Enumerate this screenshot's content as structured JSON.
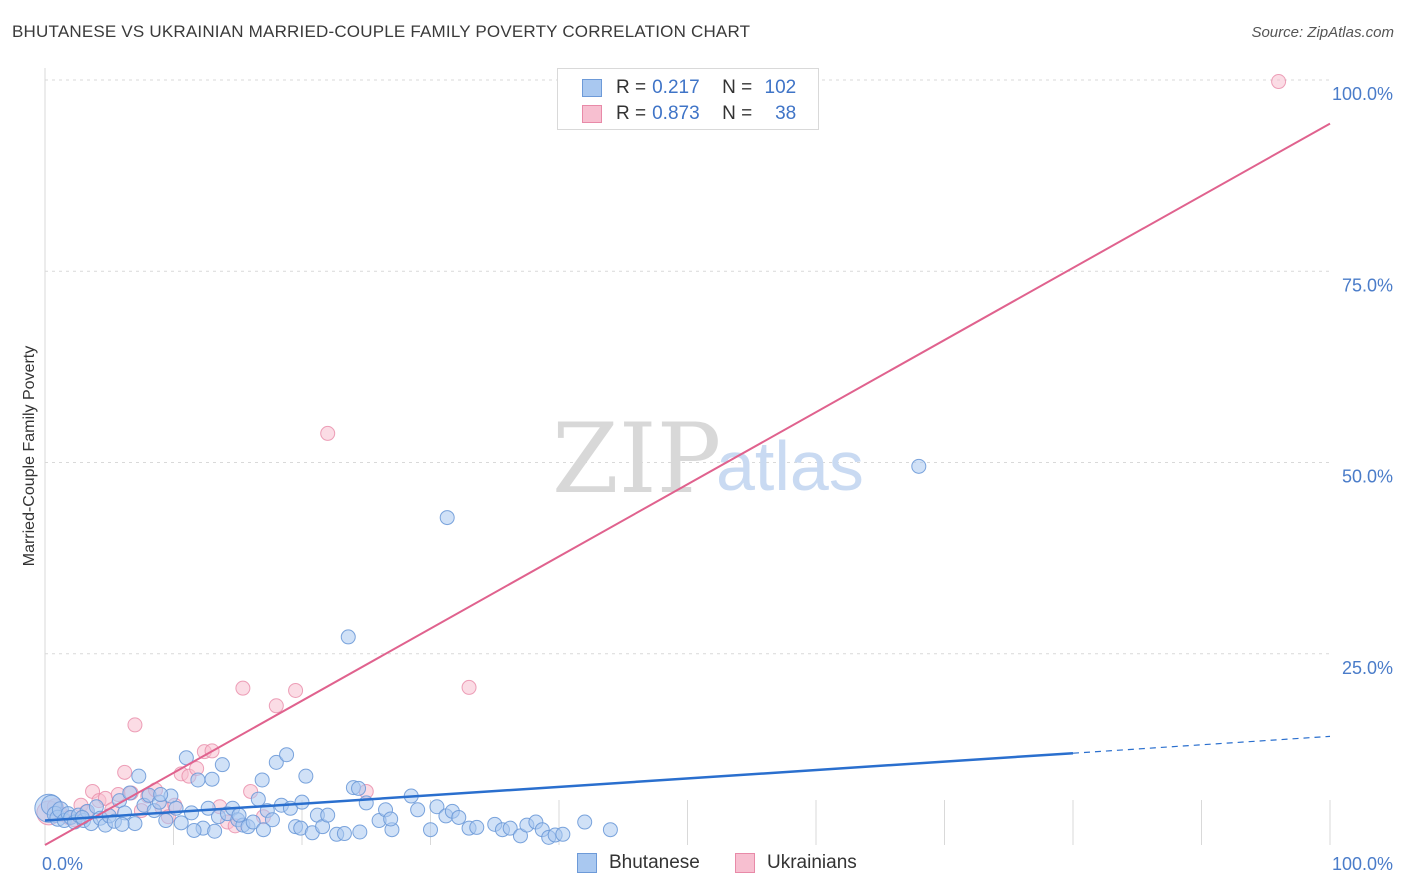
{
  "title": "BHUTANESE VS UKRAINIAN MARRIED-COUPLE FAMILY POVERTY CORRELATION CHART",
  "source": "Source: ZipAtlas.com",
  "watermark": {
    "zip": "ZIP",
    "atlas": "atlas"
  },
  "colors": {
    "bhutanese_fill": "#a9c8f0",
    "bhutanese_stroke": "#6d9ad8",
    "bhutanese_line": "#2a6fce",
    "ukrainians_fill": "#f7bfd0",
    "ukrainians_stroke": "#e88aa8",
    "ukrainians_line": "#e0628e",
    "axis_label": "#4a7cc9",
    "grid": "#d9d9d9"
  },
  "legend": {
    "rows": [
      {
        "r_label": "R =",
        "r_value": "0.217",
        "n_label": "N =",
        "n_value": "102"
      },
      {
        "r_label": "R =",
        "r_value": "0.873",
        "n_label": "N =",
        "n_value": "38"
      }
    ]
  },
  "bottom_legend": {
    "bhutanese": "Bhutanese",
    "ukrainians": "Ukrainians"
  },
  "chart_data": {
    "type": "scatter",
    "title": "BHUTANESE VS UKRAINIAN MARRIED-COUPLE FAMILY POVERTY CORRELATION CHART",
    "xlabel": "",
    "ylabel": "Married-Couple Family Poverty",
    "xlim": [
      0,
      100
    ],
    "ylim": [
      0,
      100
    ],
    "x_tick_labels": [
      "0.0%",
      "100.0%"
    ],
    "y_ticks": [
      25,
      50,
      75,
      100
    ],
    "y_tick_labels": [
      "25.0%",
      "50.0%",
      "75.0%",
      "100.0%"
    ],
    "grid": true,
    "series": [
      {
        "name": "Bhutanese",
        "r": 0.217,
        "n": 102,
        "trend": {
          "x0": 0,
          "y0": 3.2,
          "x1": 80,
          "y1": 12.0,
          "dashed_to_x": 100,
          "dashed_to_y": 14.2
        },
        "points": [
          [
            0.3,
            4.8,
            14
          ],
          [
            0.5,
            5.2,
            10
          ],
          [
            0.8,
            4.0,
            8
          ],
          [
            1.0,
            3.5,
            8
          ],
          [
            1.2,
            4.6,
            8
          ],
          [
            1.5,
            3.2,
            7
          ],
          [
            1.8,
            4.1,
            7
          ],
          [
            2.0,
            3.6,
            7
          ],
          [
            2.3,
            3.0,
            7
          ],
          [
            2.6,
            3.9,
            7
          ],
          [
            3.0,
            3.2,
            7
          ],
          [
            3.3,
            4.4,
            7
          ],
          [
            3.6,
            2.8,
            7
          ],
          [
            4.0,
            5.0,
            7
          ],
          [
            4.3,
            3.5,
            7
          ],
          [
            4.7,
            2.6,
            7
          ],
          [
            5.0,
            3.8,
            7
          ],
          [
            5.4,
            3.1,
            7
          ],
          [
            5.8,
            5.8,
            7
          ],
          [
            6.2,
            4.2,
            7
          ],
          [
            6.6,
            6.8,
            7
          ],
          [
            7.0,
            2.8,
            7
          ],
          [
            7.3,
            9.0,
            7
          ],
          [
            7.7,
            5.2,
            7
          ],
          [
            8.1,
            6.5,
            7
          ],
          [
            8.5,
            4.5,
            7
          ],
          [
            8.9,
            5.6,
            7
          ],
          [
            9.4,
            3.2,
            7
          ],
          [
            9.8,
            6.4,
            7
          ],
          [
            10.2,
            4.8,
            7
          ],
          [
            10.6,
            2.9,
            7
          ],
          [
            11.0,
            11.4,
            7
          ],
          [
            11.4,
            4.2,
            7
          ],
          [
            11.9,
            8.5,
            7
          ],
          [
            12.3,
            2.2,
            7
          ],
          [
            12.7,
            4.8,
            7
          ],
          [
            13.0,
            8.6,
            7
          ],
          [
            13.5,
            3.7,
            7
          ],
          [
            13.8,
            10.5,
            7
          ],
          [
            14.2,
            4.1,
            7
          ],
          [
            14.6,
            4.8,
            7
          ],
          [
            15.0,
            3.3,
            7
          ],
          [
            15.4,
            2.6,
            7
          ],
          [
            15.8,
            2.4,
            7
          ],
          [
            16.2,
            3.0,
            7
          ],
          [
            16.6,
            6.0,
            7
          ],
          [
            16.9,
            8.5,
            7
          ],
          [
            17.3,
            4.5,
            7
          ],
          [
            17.7,
            3.3,
            7
          ],
          [
            18.0,
            10.8,
            7
          ],
          [
            18.4,
            5.2,
            7
          ],
          [
            18.8,
            11.8,
            7
          ],
          [
            19.1,
            4.8,
            7
          ],
          [
            19.5,
            2.4,
            7
          ],
          [
            19.9,
            2.2,
            7
          ],
          [
            20.3,
            9.0,
            7
          ],
          [
            20.8,
            1.6,
            7
          ],
          [
            21.2,
            3.9,
            7
          ],
          [
            21.6,
            2.4,
            7
          ],
          [
            22.0,
            3.9,
            7
          ],
          [
            22.7,
            1.4,
            7
          ],
          [
            23.3,
            1.5,
            7
          ],
          [
            23.6,
            27.2,
            7
          ],
          [
            24.0,
            7.5,
            7
          ],
          [
            24.4,
            7.4,
            7
          ],
          [
            25.0,
            5.5,
            7
          ],
          [
            26.0,
            3.2,
            7
          ],
          [
            26.5,
            4.6,
            7
          ],
          [
            27.0,
            2.0,
            7
          ],
          [
            28.5,
            6.4,
            7
          ],
          [
            29.0,
            4.6,
            7
          ],
          [
            30.0,
            2.0,
            7
          ],
          [
            30.5,
            5.0,
            7
          ],
          [
            31.2,
            3.8,
            7
          ],
          [
            31.7,
            4.4,
            7
          ],
          [
            31.3,
            42.8,
            7
          ],
          [
            32.2,
            3.6,
            7
          ],
          [
            33.0,
            2.2,
            7
          ],
          [
            33.6,
            2.3,
            7
          ],
          [
            35.0,
            2.7,
            7
          ],
          [
            35.6,
            2.0,
            7
          ],
          [
            36.2,
            2.2,
            7
          ],
          [
            37.0,
            1.2,
            7
          ],
          [
            37.5,
            2.6,
            7
          ],
          [
            38.2,
            3.0,
            7
          ],
          [
            38.7,
            2.0,
            7
          ],
          [
            39.2,
            1.0,
            7
          ],
          [
            39.7,
            1.3,
            7
          ],
          [
            40.3,
            1.4,
            7
          ],
          [
            42.0,
            3.0,
            7
          ],
          [
            44.0,
            2.0,
            7
          ],
          [
            68.0,
            49.5,
            7
          ],
          [
            24.5,
            1.7,
            7
          ],
          [
            20.0,
            5.6,
            7
          ],
          [
            2.9,
            3.6,
            7
          ],
          [
            6.0,
            2.7,
            7
          ],
          [
            9.0,
            6.6,
            7
          ],
          [
            13.2,
            1.8,
            7
          ],
          [
            15.1,
            3.9,
            7
          ],
          [
            17.0,
            2.0,
            7
          ],
          [
            26.9,
            3.4,
            7
          ],
          [
            11.6,
            1.9,
            7
          ]
        ]
      },
      {
        "name": "Ukrainians",
        "r": 0.873,
        "n": 38,
        "trend": {
          "x0": 0,
          "y0": 0.0,
          "x1": 100,
          "y1": 94.3
        },
        "points": [
          [
            0.3,
            4.2,
            12
          ],
          [
            0.8,
            5.0,
            8
          ],
          [
            1.3,
            4.0,
            7
          ],
          [
            1.8,
            3.6,
            7
          ],
          [
            2.3,
            3.3,
            7
          ],
          [
            2.8,
            5.2,
            7
          ],
          [
            3.2,
            4.3,
            7
          ],
          [
            3.7,
            7.0,
            7
          ],
          [
            4.2,
            5.8,
            7
          ],
          [
            4.7,
            6.1,
            7
          ],
          [
            5.2,
            4.6,
            7
          ],
          [
            5.7,
            6.6,
            7
          ],
          [
            6.2,
            9.5,
            7
          ],
          [
            6.7,
            6.8,
            7
          ],
          [
            7.0,
            15.7,
            7
          ],
          [
            7.5,
            4.5,
            7
          ],
          [
            8.0,
            6.4,
            7
          ],
          [
            8.6,
            7.2,
            7
          ],
          [
            9.1,
            4.9,
            7
          ],
          [
            9.6,
            3.7,
            7
          ],
          [
            10.1,
            5.2,
            7
          ],
          [
            10.6,
            9.3,
            7
          ],
          [
            11.2,
            9.0,
            7
          ],
          [
            11.8,
            10.0,
            7
          ],
          [
            12.4,
            12.2,
            7
          ],
          [
            13.0,
            12.3,
            7
          ],
          [
            13.6,
            5.0,
            7
          ],
          [
            14.2,
            3.0,
            7
          ],
          [
            14.8,
            2.5,
            7
          ],
          [
            15.4,
            20.5,
            7
          ],
          [
            16.0,
            7.0,
            7
          ],
          [
            17.0,
            3.7,
            7
          ],
          [
            18.0,
            18.2,
            7
          ],
          [
            19.5,
            20.2,
            7
          ],
          [
            22.0,
            53.8,
            7
          ],
          [
            25.0,
            7.0,
            7
          ],
          [
            33.0,
            20.6,
            7
          ],
          [
            96.0,
            99.8,
            7
          ]
        ]
      }
    ]
  }
}
